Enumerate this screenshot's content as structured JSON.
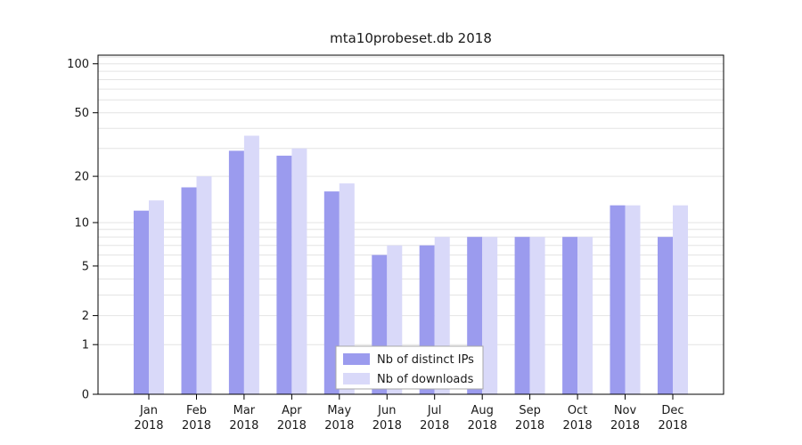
{
  "chart_data": {
    "type": "bar",
    "title": "mta10probeset.db 2018",
    "categories": [
      "Jan",
      "Feb",
      "Mar",
      "Apr",
      "May",
      "Jun",
      "Jul",
      "Aug",
      "Sep",
      "Oct",
      "Nov",
      "Dec"
    ],
    "category_year": "2018",
    "series": [
      {
        "name": "Nb of distinct IPs",
        "color": "#9b9bee",
        "values": [
          12,
          17,
          29,
          27,
          16,
          6,
          7,
          8,
          8,
          8,
          13,
          8
        ]
      },
      {
        "name": "Nb of downloads",
        "color": "#d9d9f9",
        "values": [
          14,
          20,
          36,
          30,
          18,
          7,
          8,
          8,
          8,
          8,
          13,
          13
        ]
      }
    ],
    "yscale": "log1p",
    "yticks": [
      0,
      1,
      2,
      5,
      10,
      20,
      50,
      100
    ],
    "ylim": [
      0,
      113
    ],
    "xlabel": "",
    "ylabel": "",
    "grid": "horizontal-log-minor",
    "gridline_color": "#e4e4e4",
    "frame_color": "#000000",
    "legend_position": "bottom-center-inside"
  }
}
